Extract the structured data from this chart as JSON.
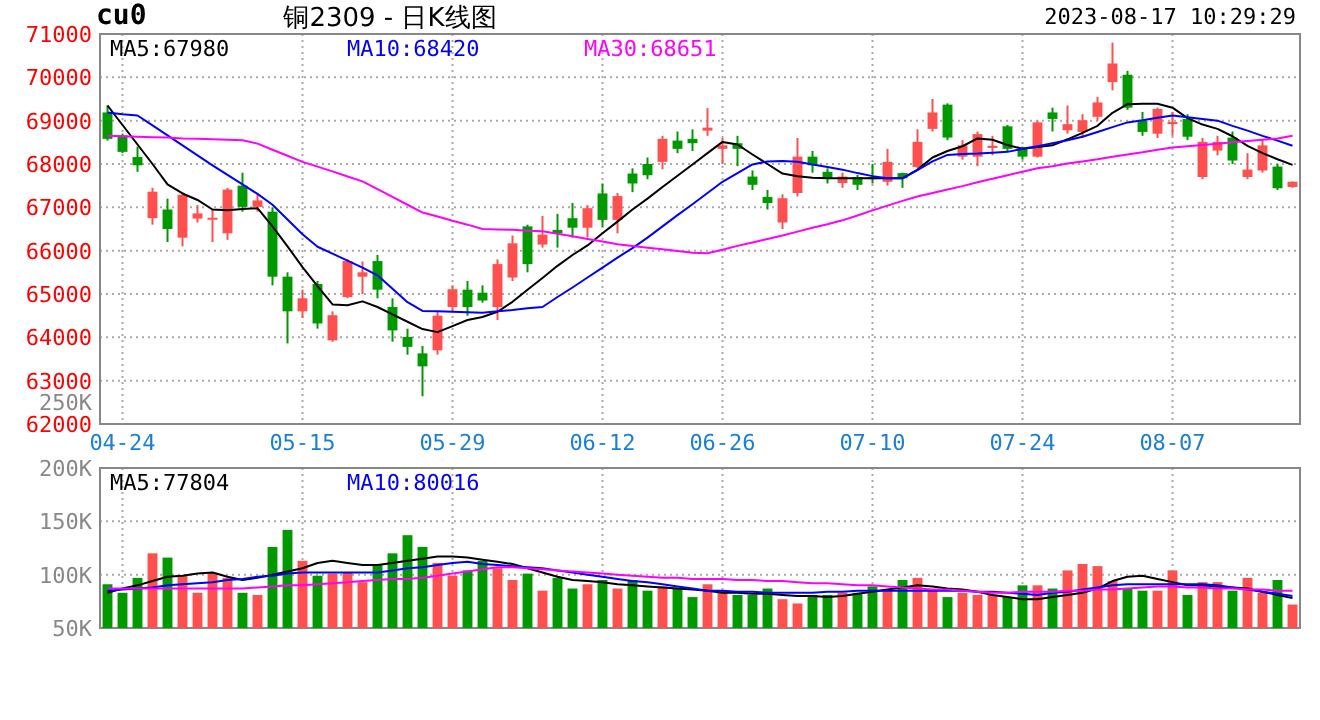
{
  "chart_data": [
    {
      "type": "candlestick",
      "title": "铜2309 - 日K线图",
      "annotations": [
        "cu0",
        "2023-08-17 10:29:29",
        "250K"
      ],
      "legend": "top left",
      "grid": true,
      "categories": [
        null,
        "04-24",
        null,
        null,
        null,
        null,
        null,
        null,
        null,
        null,
        null,
        null,
        null,
        "05-15",
        null,
        null,
        null,
        null,
        null,
        null,
        null,
        null,
        null,
        "05-29",
        null,
        null,
        null,
        null,
        null,
        null,
        null,
        null,
        null,
        "06-12",
        null,
        null,
        null,
        null,
        null,
        null,
        null,
        "06-26",
        null,
        null,
        null,
        null,
        null,
        null,
        null,
        null,
        null,
        "07-10",
        null,
        null,
        null,
        null,
        null,
        null,
        null,
        null,
        null,
        "07-24",
        null,
        null,
        null,
        null,
        null,
        null,
        null,
        null,
        null,
        "08-07",
        null,
        null,
        null,
        null,
        null,
        null,
        null,
        null
      ],
      "ohlc": [
        [
          69190,
          69350,
          68540,
          68580
        ],
        [
          68660,
          68700,
          68250,
          68280
        ],
        [
          68160,
          68400,
          67820,
          67970
        ],
        [
          66750,
          67450,
          66600,
          67360
        ],
        [
          66950,
          67200,
          66200,
          66500
        ],
        [
          66300,
          67350,
          66100,
          67290
        ],
        [
          66740,
          67050,
          66650,
          66860
        ],
        [
          66720,
          66950,
          66200,
          66760
        ],
        [
          66400,
          67450,
          66250,
          67410
        ],
        [
          67500,
          67800,
          66900,
          67010
        ],
        [
          67010,
          67300,
          66900,
          67160
        ],
        [
          66900,
          67000,
          65200,
          65400
        ],
        [
          65400,
          65500,
          63860,
          64600
        ],
        [
          64600,
          65100,
          64450,
          64900
        ],
        [
          65230,
          65300,
          64200,
          64320
        ],
        [
          63930,
          64600,
          63900,
          64510
        ],
        [
          64930,
          65800,
          64900,
          65760
        ],
        [
          65400,
          65750,
          65000,
          65500
        ],
        [
          65760,
          65900,
          64900,
          65100
        ],
        [
          64700,
          64900,
          63900,
          64160
        ],
        [
          64010,
          64200,
          63600,
          63780
        ],
        [
          63630,
          63800,
          62640,
          63330
        ],
        [
          63700,
          64600,
          63600,
          64500
        ],
        [
          64700,
          65200,
          64600,
          65110
        ],
        [
          65100,
          65300,
          64500,
          64700
        ],
        [
          65030,
          65200,
          64800,
          64850
        ],
        [
          64700,
          65800,
          64400,
          65690
        ],
        [
          65380,
          66350,
          65300,
          66170
        ],
        [
          66560,
          66600,
          65500,
          65690
        ],
        [
          66140,
          66800,
          66070,
          66370
        ],
        [
          66480,
          66850,
          66070,
          66400
        ],
        [
          66750,
          67100,
          66300,
          66530
        ],
        [
          66530,
          67050,
          66300,
          66980
        ],
        [
          67320,
          67550,
          66550,
          66710
        ],
        [
          66710,
          67330,
          66400,
          67260
        ],
        [
          67780,
          67900,
          67350,
          67550
        ],
        [
          68000,
          68150,
          67650,
          67740
        ],
        [
          68050,
          68650,
          67880,
          68580
        ],
        [
          68540,
          68750,
          68250,
          68350
        ],
        [
          68580,
          68800,
          68300,
          68480
        ],
        [
          68770,
          69290,
          68650,
          68840
        ],
        [
          68350,
          68600,
          68000,
          68430
        ],
        [
          68480,
          68650,
          67950,
          68350
        ],
        [
          67710,
          67850,
          67400,
          67520
        ],
        [
          67240,
          67400,
          66950,
          67100
        ],
        [
          66650,
          67300,
          66500,
          67210
        ],
        [
          67330,
          68600,
          67250,
          68170
        ],
        [
          68170,
          68300,
          67800,
          67970
        ],
        [
          67820,
          67900,
          67550,
          67670
        ],
        [
          67560,
          67800,
          67450,
          67710
        ],
        [
          67700,
          67750,
          67400,
          67520
        ],
        [
          67700,
          68000,
          67550,
          67650
        ],
        [
          67590,
          68350,
          67500,
          68050
        ],
        [
          67790,
          67800,
          67450,
          67670
        ],
        [
          67930,
          68800,
          67900,
          68510
        ],
        [
          68810,
          69500,
          68750,
          69190
        ],
        [
          69370,
          69400,
          68550,
          68610
        ],
        [
          68170,
          68550,
          68100,
          68430
        ],
        [
          68170,
          68750,
          67950,
          68690
        ],
        [
          68370,
          68650,
          68200,
          68420
        ],
        [
          68870,
          68900,
          68300,
          68350
        ],
        [
          68350,
          68400,
          68100,
          68170
        ],
        [
          68170,
          69000,
          68150,
          68960
        ],
        [
          69190,
          69300,
          68750,
          69040
        ],
        [
          68780,
          69350,
          68700,
          68920
        ],
        [
          68740,
          69150,
          68600,
          69010
        ],
        [
          69090,
          69550,
          69000,
          69420
        ],
        [
          69890,
          70800,
          69700,
          70320
        ],
        [
          70060,
          70150,
          69250,
          69300
        ],
        [
          69000,
          69200,
          68650,
          68740
        ],
        [
          68700,
          69300,
          68600,
          69270
        ],
        [
          68920,
          69200,
          68650,
          68970
        ],
        [
          69040,
          69150,
          68550,
          68630
        ],
        [
          67700,
          68600,
          67650,
          68510
        ],
        [
          68310,
          68650,
          68200,
          68510
        ],
        [
          68610,
          68750,
          68000,
          68080
        ],
        [
          67700,
          68250,
          67650,
          67870
        ],
        [
          67850,
          68560,
          67800,
          68430
        ],
        [
          67940,
          68000,
          67400,
          67440
        ],
        [
          67470,
          67600,
          67450,
          67590
        ]
      ],
      "colors": [
        "#009900",
        "#009900",
        "#009900",
        "#ff5050",
        "#009900",
        "#ff5050",
        "#ff5050",
        "#ff5050",
        "#ff5050",
        "#009900",
        "#ff5050",
        "#009900",
        "#009900",
        "#ff5050",
        "#009900",
        "#ff5050",
        "#ff5050",
        "#ff5050",
        "#009900",
        "#009900",
        "#009900",
        "#009900",
        "#ff5050",
        "#ff5050",
        "#009900",
        "#009900",
        "#ff5050",
        "#ff5050",
        "#009900",
        "#ff5050",
        "#009900",
        "#009900",
        "#ff5050",
        "#009900",
        "#ff5050",
        "#009900",
        "#009900",
        "#ff5050",
        "#009900",
        "#009900",
        "#ff5050",
        "#ff5050",
        "#009900",
        "#009900",
        "#009900",
        "#ff5050",
        "#ff5050",
        "#009900",
        "#009900",
        "#ff5050",
        "#009900",
        "#009900",
        "#ff5050",
        "#009900",
        "#ff5050",
        "#ff5050",
        "#009900",
        "#ff5050",
        "#ff5050",
        "#ff5050",
        "#009900",
        "#009900",
        "#ff5050",
        "#009900",
        "#ff5050",
        "#ff5050",
        "#ff5050",
        "#ff5050",
        "#009900",
        "#009900",
        "#ff5050",
        "#ff5050",
        "#009900",
        "#ff5050",
        "#ff5050",
        "#009900",
        "#ff5050",
        "#ff5050",
        "#009900",
        "#ff5050"
      ],
      "series": [
        {
          "type": "line",
          "name": "MA5:67980",
          "color": "#000000",
          "values": [
            69350,
            68900,
            68450,
            68000,
            67530,
            67320,
            67170,
            66950,
            66930,
            66960,
            66980,
            66560,
            66100,
            65620,
            65180,
            64760,
            64740,
            64830,
            64700,
            64530,
            64360,
            64190,
            64120,
            64260,
            64400,
            64470,
            64590,
            64820,
            65100,
            65370,
            65650,
            65900,
            66120,
            66400,
            66670,
            66950,
            67200,
            67470,
            67730,
            67990,
            68250,
            68510,
            68450,
            68220,
            68000,
            67780,
            67720,
            67680,
            67670,
            67670,
            67670,
            67670,
            67670,
            67670,
            67870,
            68150,
            68300,
            68410,
            68590,
            68560,
            68440,
            68350,
            68390,
            68430,
            68570,
            68720,
            68880,
            69180,
            69380,
            69390,
            69390,
            69300,
            69060,
            68910,
            68810,
            68640,
            68420,
            68250,
            68110,
            67980
          ]
        },
        {
          "type": "line",
          "name": "MA10:68420",
          "color": "#0000ff",
          "values": [
            69190,
            69150,
            69120,
            68890,
            68660,
            68430,
            68200,
            67970,
            67750,
            67530,
            67310,
            67060,
            66720,
            66380,
            66090,
            65930,
            65770,
            65610,
            65430,
            65120,
            64810,
            64610,
            64600,
            64590,
            64580,
            64570,
            64600,
            64630,
            64670,
            64700,
            64930,
            65150,
            65380,
            65610,
            65840,
            66060,
            66300,
            66560,
            66820,
            67070,
            67330,
            67590,
            67790,
            67990,
            68060,
            68070,
            68050,
            67990,
            67930,
            67870,
            67790,
            67720,
            67670,
            67670,
            67860,
            68060,
            68210,
            68230,
            68240,
            68260,
            68280,
            68350,
            68410,
            68480,
            68550,
            68630,
            68740,
            68850,
            68960,
            69010,
            69070,
            69120,
            69080,
            69040,
            69000,
            68880,
            68770,
            68650,
            68540,
            68420
          ]
        },
        {
          "type": "line",
          "name": "MA30:68651",
          "color": "#ff00ff",
          "values": [
            68650,
            68640,
            68630,
            68620,
            68610,
            68590,
            68580,
            68570,
            68560,
            68550,
            68470,
            68330,
            68190,
            68050,
            67940,
            67830,
            67710,
            67600,
            67420,
            67240,
            67060,
            66880,
            66790,
            66690,
            66600,
            66500,
            66490,
            66480,
            66460,
            66450,
            66390,
            66330,
            66270,
            66210,
            66150,
            66110,
            66070,
            66030,
            65990,
            65950,
            65940,
            66020,
            66110,
            66190,
            66270,
            66350,
            66440,
            66530,
            66610,
            66700,
            66810,
            66930,
            67040,
            67150,
            67250,
            67330,
            67410,
            67490,
            67580,
            67660,
            67740,
            67820,
            67900,
            67950,
            68010,
            68060,
            68110,
            68170,
            68220,
            68270,
            68330,
            68380,
            68410,
            68440,
            68470,
            68500,
            68530,
            68560,
            68590,
            68650
          ]
        }
      ],
      "ylim": [
        62000,
        71000
      ],
      "yticks": [
        62000,
        63000,
        64000,
        65000,
        66000,
        67000,
        68000,
        69000,
        70000,
        71000
      ]
    },
    {
      "type": "bar",
      "legend": "top left",
      "grid": true,
      "tick_labels": "y",
      "categories": [
        null,
        null,
        null,
        null,
        null,
        null,
        null,
        null,
        null,
        null,
        null,
        null,
        null,
        null,
        null,
        null,
        null,
        null,
        null,
        null,
        null,
        null,
        null,
        null,
        null,
        null,
        null,
        null,
        null,
        null,
        null,
        null,
        null,
        null,
        null,
        null,
        null,
        null,
        null,
        null,
        null,
        null,
        null,
        null,
        null,
        null,
        null,
        null,
        null,
        null,
        null,
        null,
        null,
        null,
        null,
        null,
        null,
        null,
        null,
        null,
        null,
        null,
        null,
        null,
        null,
        null,
        null,
        null,
        null,
        null,
        null,
        null,
        null,
        null,
        null,
        null,
        null,
        null,
        null,
        null
      ],
      "values": [
        91000,
        83000,
        97000,
        120000,
        116000,
        99000,
        83000,
        102000,
        97000,
        83000,
        81000,
        126000,
        142000,
        113000,
        99000,
        101000,
        102000,
        93000,
        109000,
        120000,
        137000,
        126000,
        111000,
        99000,
        104000,
        113000,
        106000,
        95000,
        101000,
        85000,
        97000,
        87000,
        91000,
        95000,
        87000,
        95000,
        85000,
        89000,
        87000,
        79000,
        91000,
        85000,
        81000,
        81000,
        87000,
        77000,
        73000,
        81000,
        81000,
        83000,
        83000,
        89000,
        85000,
        95000,
        97000,
        85000,
        79000,
        83000,
        81000,
        81000,
        79000,
        90000,
        90000,
        87000,
        104000,
        110000,
        108000,
        94000,
        87000,
        85000,
        85000,
        104000,
        81000,
        93000,
        93000,
        85000,
        97000,
        83000,
        95000,
        72000
      ],
      "colors": [
        "#009900",
        "#009900",
        "#009900",
        "#ff5050",
        "#009900",
        "#ff5050",
        "#ff5050",
        "#ff5050",
        "#ff5050",
        "#009900",
        "#ff5050",
        "#009900",
        "#009900",
        "#ff5050",
        "#009900",
        "#ff5050",
        "#ff5050",
        "#ff5050",
        "#009900",
        "#009900",
        "#009900",
        "#009900",
        "#ff5050",
        "#ff5050",
        "#009900",
        "#009900",
        "#ff5050",
        "#ff5050",
        "#009900",
        "#ff5050",
        "#009900",
        "#009900",
        "#ff5050",
        "#009900",
        "#ff5050",
        "#009900",
        "#009900",
        "#ff5050",
        "#009900",
        "#009900",
        "#ff5050",
        "#ff5050",
        "#009900",
        "#009900",
        "#009900",
        "#ff5050",
        "#ff5050",
        "#009900",
        "#009900",
        "#ff5050",
        "#009900",
        "#009900",
        "#ff5050",
        "#009900",
        "#ff5050",
        "#ff5050",
        "#009900",
        "#ff5050",
        "#ff5050",
        "#ff5050",
        "#009900",
        "#009900",
        "#ff5050",
        "#009900",
        "#ff5050",
        "#ff5050",
        "#ff5050",
        "#ff5050",
        "#009900",
        "#009900",
        "#ff5050",
        "#ff5050",
        "#009900",
        "#ff5050",
        "#ff5050",
        "#009900",
        "#ff5050",
        "#ff5050",
        "#009900",
        "#ff5050"
      ],
      "series": [
        {
          "type": "line",
          "name": "MA5:77804",
          "color": "#000000",
          "values": [
            83000,
            87000,
            90000,
            94000,
            98000,
            99000,
            101000,
            102000,
            98000,
            95000,
            97000,
            100000,
            103000,
            106000,
            111000,
            113000,
            111000,
            109000,
            109000,
            111000,
            113000,
            115000,
            117000,
            117000,
            116000,
            114000,
            112000,
            110000,
            106000,
            102000,
            98000,
            95000,
            94000,
            93000,
            91000,
            90000,
            89000,
            88000,
            87000,
            86000,
            85000,
            83000,
            83000,
            82000,
            82000,
            81000,
            80000,
            80000,
            79000,
            80000,
            82000,
            84000,
            86000,
            88000,
            90000,
            89000,
            87000,
            86000,
            84000,
            81000,
            79000,
            77000,
            77000,
            79000,
            81000,
            83000,
            87000,
            94000,
            98000,
            99000,
            96000,
            93000,
            90000,
            90000,
            89000,
            88000,
            87000,
            84000,
            81000,
            78000
          ]
        },
        {
          "type": "line",
          "name": "MA10:80016",
          "color": "#0000ff",
          "values": [
            85000,
            86000,
            87000,
            88000,
            90000,
            91000,
            92000,
            93000,
            95000,
            96000,
            98000,
            99000,
            101000,
            102000,
            102000,
            102000,
            102000,
            102000,
            102000,
            104000,
            106000,
            107000,
            109000,
            111000,
            112000,
            110000,
            109000,
            108000,
            107000,
            106000,
            104000,
            102000,
            100000,
            98000,
            96000,
            94000,
            93000,
            91000,
            89000,
            87000,
            85000,
            85000,
            84000,
            84000,
            83000,
            83000,
            83000,
            83000,
            84000,
            84000,
            85000,
            85000,
            85000,
            85000,
            85000,
            85000,
            85000,
            85000,
            84000,
            84000,
            83000,
            82000,
            81000,
            83000,
            84000,
            86000,
            88000,
            90000,
            91000,
            91000,
            91000,
            91000,
            91000,
            91000,
            90000,
            88000,
            86000,
            84000,
            82000,
            80000
          ]
        },
        {
          "type": "line",
          "color": "#ff00ff",
          "values": [
            87000,
            87000,
            87000,
            87000,
            87000,
            87000,
            87000,
            87000,
            87000,
            87000,
            88000,
            89000,
            90000,
            90000,
            91000,
            92000,
            93000,
            94000,
            95000,
            96000,
            96000,
            97000,
            99000,
            101000,
            103000,
            105000,
            107000,
            107000,
            106000,
            105000,
            104000,
            103000,
            102000,
            101000,
            100000,
            99000,
            98000,
            97000,
            97000,
            96000,
            96000,
            96000,
            95000,
            95000,
            94000,
            94000,
            93000,
            92000,
            92000,
            91000,
            90000,
            90000,
            89000,
            88000,
            87000,
            86000,
            86000,
            85000,
            84000,
            83000,
            83000,
            84000,
            84000,
            84000,
            85000,
            85000,
            86000,
            86000,
            87000,
            88000,
            89000,
            89000,
            88000,
            88000,
            87000,
            87000,
            86000,
            86000,
            85000,
            85000
          ]
        }
      ],
      "ylim": [
        50000,
        200000
      ],
      "yticks": [
        {
          "value": 50000,
          "label": "50K"
        },
        {
          "value": 100000,
          "label": "100K"
        },
        {
          "value": 150000,
          "label": "150K"
        },
        {
          "value": 200000,
          "label": "200K"
        }
      ]
    }
  ]
}
